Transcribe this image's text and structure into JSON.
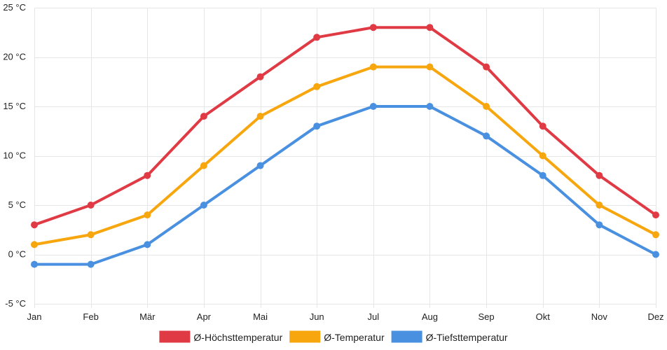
{
  "chart_data": {
    "type": "line",
    "title": "",
    "xlabel": "",
    "ylabel": "",
    "grid": true,
    "legend_position": "bottom",
    "categories": [
      "Jan",
      "Feb",
      "Mär",
      "Apr",
      "Mai",
      "Jun",
      "Jul",
      "Aug",
      "Sep",
      "Okt",
      "Nov",
      "Dez"
    ],
    "ylim": [
      -5,
      25
    ],
    "yticks": [
      -5,
      0,
      5,
      10,
      15,
      20,
      25
    ],
    "ytick_labels": [
      "-5 °C",
      "0 °C",
      "5 °C",
      "10 °C",
      "15 °C",
      "20 °C",
      "25 °C"
    ],
    "series": [
      {
        "name": "Ø-Höchsttemperatur",
        "color": "#e03a45",
        "values": [
          3,
          5,
          8,
          14,
          18,
          22,
          23,
          23,
          19,
          13,
          8,
          4
        ]
      },
      {
        "name": "Ø-Temperatur",
        "color": "#f7a60e",
        "values": [
          1,
          2,
          4,
          9,
          14,
          17,
          19,
          19,
          15,
          10,
          5,
          2
        ]
      },
      {
        "name": "Ø-Tiefsttemperatur",
        "color": "#4a90e0",
        "values": [
          -1,
          -1,
          1,
          5,
          9,
          13,
          15,
          15,
          12,
          8,
          3,
          0
        ]
      }
    ]
  }
}
